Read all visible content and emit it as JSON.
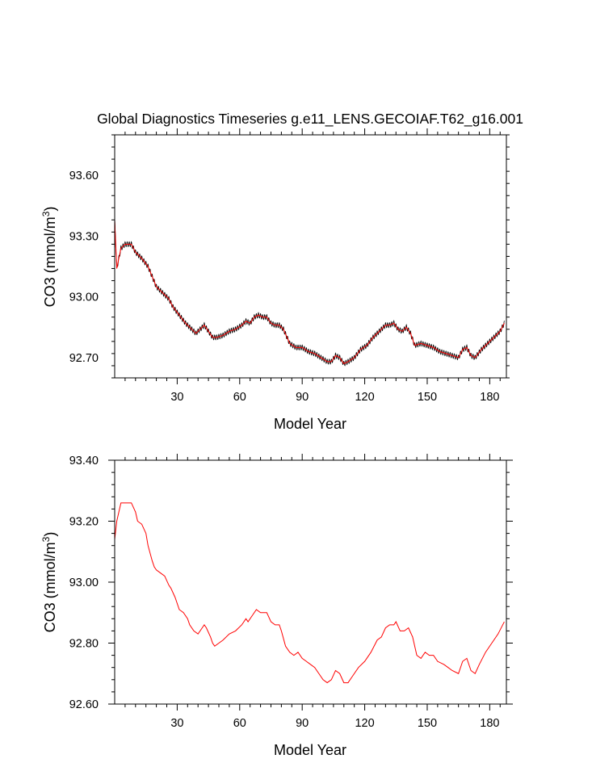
{
  "title": "Global Diagnostics Timeseries g.e11_LENS.GECOIAF.T62_g16.001",
  "chart_data": [
    {
      "type": "line",
      "panel": "monthly",
      "xlabel": "Model Year",
      "ylabel": "CO3 (mmol/m",
      "ylabel_sup": "3",
      "ylabel_close": ")",
      "xlim": [
        0,
        188
      ],
      "ylim": [
        92.6,
        93.8
      ],
      "xticks": [
        30,
        60,
        90,
        120,
        150,
        180
      ],
      "xtick_labels": [
        "30",
        "60",
        "90",
        "120",
        "150",
        "180"
      ],
      "yticks": [
        92.7,
        93.0,
        93.3,
        93.6
      ],
      "ytick_labels": [
        "92.70",
        "93.00",
        "93.30",
        "93.60"
      ],
      "grid": false,
      "series": [
        {
          "color": "#000000",
          "seasonal_amplitude": 0.012,
          "x": [
            0,
            1,
            3,
            5,
            8,
            10,
            13,
            16,
            18,
            20,
            23,
            26,
            28,
            31,
            34,
            37,
            39,
            41,
            43,
            45,
            47,
            49,
            52,
            55,
            58,
            61,
            63,
            65,
            67,
            69,
            71,
            73,
            75,
            77,
            79,
            81,
            84,
            87,
            90,
            93,
            96,
            99,
            102,
            104,
            106,
            108,
            110,
            112,
            115,
            118,
            121,
            124,
            127,
            130,
            132,
            134,
            136,
            138,
            140,
            142,
            144,
            147,
            150,
            153,
            156,
            159,
            162,
            165,
            167,
            169,
            171,
            173,
            176,
            179,
            182,
            185,
            187
          ],
          "y": [
            93.38,
            93.14,
            93.24,
            93.26,
            93.26,
            93.22,
            93.19,
            93.15,
            93.1,
            93.05,
            93.02,
            92.99,
            92.95,
            92.91,
            92.87,
            92.84,
            92.82,
            92.84,
            92.86,
            92.83,
            92.8,
            92.8,
            92.81,
            92.83,
            92.84,
            92.86,
            92.88,
            92.87,
            92.9,
            92.91,
            92.9,
            92.9,
            92.87,
            92.86,
            92.86,
            92.84,
            92.77,
            92.75,
            92.75,
            92.73,
            92.72,
            92.7,
            92.68,
            92.68,
            92.71,
            92.7,
            92.67,
            92.68,
            92.7,
            92.74,
            92.76,
            92.8,
            92.83,
            92.86,
            92.86,
            92.87,
            92.84,
            92.83,
            92.85,
            92.82,
            92.76,
            92.77,
            92.76,
            92.75,
            92.73,
            92.72,
            92.71,
            92.7,
            92.74,
            92.75,
            92.71,
            92.7,
            92.74,
            92.77,
            92.8,
            92.83,
            92.87
          ]
        },
        {
          "color": "#ff0000",
          "x": [
            0,
            1,
            3,
            5,
            8,
            10,
            13,
            16,
            18,
            20,
            23,
            26,
            28,
            31,
            34,
            37,
            39,
            41,
            43,
            45,
            47,
            49,
            52,
            55,
            58,
            61,
            63,
            65,
            67,
            69,
            71,
            73,
            75,
            77,
            79,
            81,
            84,
            87,
            90,
            93,
            96,
            99,
            102,
            104,
            106,
            108,
            110,
            112,
            115,
            118,
            121,
            124,
            127,
            130,
            132,
            134,
            136,
            138,
            140,
            142,
            144,
            147,
            150,
            153,
            156,
            159,
            162,
            165,
            167,
            169,
            171,
            173,
            176,
            179,
            182,
            185,
            187
          ],
          "y": [
            93.38,
            93.14,
            93.24,
            93.26,
            93.26,
            93.22,
            93.19,
            93.15,
            93.1,
            93.05,
            93.02,
            92.99,
            92.95,
            92.91,
            92.87,
            92.84,
            92.82,
            92.84,
            92.86,
            92.83,
            92.8,
            92.8,
            92.81,
            92.83,
            92.84,
            92.86,
            92.88,
            92.87,
            92.9,
            92.91,
            92.9,
            92.9,
            92.87,
            92.86,
            92.86,
            92.84,
            92.77,
            92.75,
            92.75,
            92.73,
            92.72,
            92.7,
            92.68,
            92.68,
            92.71,
            92.7,
            92.67,
            92.68,
            92.7,
            92.74,
            92.76,
            92.8,
            92.83,
            92.86,
            92.86,
            92.87,
            92.84,
            92.83,
            92.85,
            92.82,
            92.76,
            92.77,
            92.76,
            92.75,
            92.73,
            92.72,
            92.71,
            92.7,
            92.74,
            92.75,
            92.71,
            92.7,
            92.74,
            92.77,
            92.8,
            92.83,
            92.87
          ]
        }
      ]
    },
    {
      "type": "line",
      "panel": "annual",
      "xlabel": "Model Year",
      "ylabel": "CO3 (mmol/m",
      "ylabel_sup": "3",
      "ylabel_close": ")",
      "xlim": [
        0,
        188
      ],
      "ylim": [
        92.6,
        93.4
      ],
      "xticks": [
        30,
        60,
        90,
        120,
        150,
        180
      ],
      "xtick_labels": [
        "30",
        "60",
        "90",
        "120",
        "150",
        "180"
      ],
      "yticks": [
        92.6,
        92.8,
        93.0,
        93.2,
        93.4
      ],
      "ytick_labels": [
        "92.60",
        "92.80",
        "93.00",
        "93.20",
        "93.40"
      ],
      "grid": false,
      "series": [
        {
          "color": "#ff0000",
          "x": [
            0,
            1,
            3,
            5,
            8,
            10,
            11,
            13,
            15,
            16,
            18,
            19,
            20,
            22,
            24,
            26,
            27,
            29,
            31,
            33,
            35,
            36,
            38,
            40,
            42,
            43,
            44,
            46,
            47,
            48,
            50,
            52,
            55,
            58,
            61,
            63,
            64,
            66,
            68,
            70,
            72,
            73,
            75,
            77,
            79,
            80,
            82,
            84,
            86,
            88,
            90,
            92,
            94,
            96,
            98,
            100,
            102,
            104,
            106,
            108,
            110,
            112,
            114,
            117,
            120,
            123,
            126,
            128,
            130,
            132,
            134,
            135,
            137,
            139,
            141,
            143,
            145,
            147,
            149,
            151,
            153,
            155,
            158,
            160,
            162,
            165,
            167,
            169,
            171,
            173,
            175,
            178,
            181,
            184,
            187
          ],
          "y": [
            93.14,
            93.2,
            93.26,
            93.26,
            93.26,
            93.23,
            93.2,
            93.19,
            93.16,
            93.12,
            93.07,
            93.05,
            93.04,
            93.03,
            93.02,
            92.99,
            92.98,
            92.95,
            92.91,
            92.9,
            92.88,
            92.86,
            92.84,
            92.83,
            92.85,
            92.86,
            92.85,
            92.82,
            92.8,
            92.79,
            92.8,
            92.81,
            92.83,
            92.84,
            92.86,
            92.88,
            92.87,
            92.89,
            92.91,
            92.9,
            92.9,
            92.9,
            92.87,
            92.86,
            92.86,
            92.84,
            92.79,
            92.77,
            92.76,
            92.77,
            92.75,
            92.74,
            92.73,
            92.72,
            92.7,
            92.68,
            92.67,
            92.68,
            92.71,
            92.7,
            92.67,
            92.67,
            92.69,
            92.72,
            92.74,
            92.77,
            92.81,
            92.82,
            92.85,
            92.86,
            92.86,
            92.87,
            92.84,
            92.84,
            92.85,
            92.82,
            92.76,
            92.75,
            92.77,
            92.76,
            92.76,
            92.74,
            92.73,
            92.72,
            92.71,
            92.7,
            92.74,
            92.75,
            92.71,
            92.7,
            92.73,
            92.77,
            92.8,
            92.83,
            92.87
          ]
        }
      ]
    }
  ]
}
